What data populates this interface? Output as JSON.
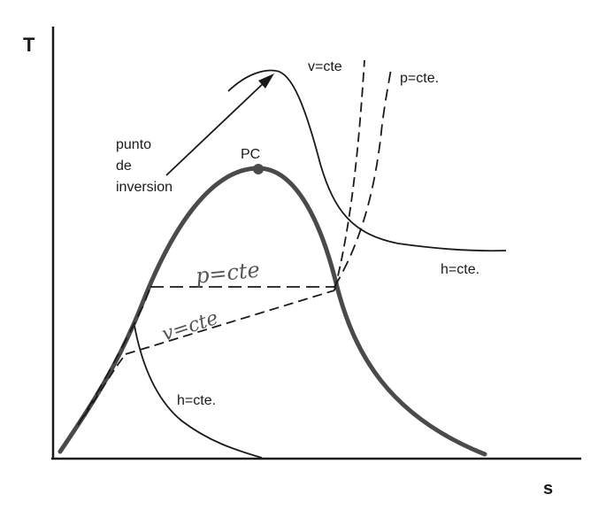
{
  "diagram": {
    "axes": {
      "y_label": "T",
      "x_label": "s"
    },
    "labels": {
      "critical_point": "PC",
      "inversion_line1": "punto",
      "inversion_line2": "de",
      "inversion_line3": "inversion",
      "isochore_top": "v=cte",
      "isobar_top": "p=cte.",
      "isenthalp_right": "h=cte.",
      "isenthalp_bottom": "h=cte.",
      "handwritten_p": "p=cte",
      "handwritten_v": "v=cte"
    },
    "colors": {
      "ink": "#1a1a1a",
      "dome": "#4a4a4a",
      "pencil": "#666666"
    }
  }
}
